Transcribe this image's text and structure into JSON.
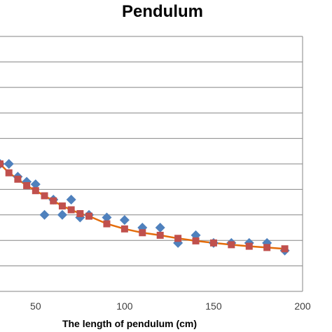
{
  "chart_data": {
    "type": "scatter",
    "title": "Pendulum",
    "xlabel": "The length of pendulum (cm)",
    "ylabel": "",
    "xlim": [
      30,
      200
    ],
    "ylim": [
      0,
      10
    ],
    "x_ticks": [
      50,
      100,
      150,
      200
    ],
    "grid": true,
    "legend": "none",
    "series": [
      {
        "marker": "diamond",
        "color": "#4F81BD",
        "points": [
          [
            30,
            5.0
          ],
          [
            35,
            5.0
          ],
          [
            40,
            4.5
          ],
          [
            45,
            4.3
          ],
          [
            50,
            4.2
          ],
          [
            55,
            3.0
          ],
          [
            60,
            3.6
          ],
          [
            65,
            3.0
          ],
          [
            70,
            3.6
          ],
          [
            75,
            2.9
          ],
          [
            80,
            3.0
          ],
          [
            90,
            2.9
          ],
          [
            100,
            2.8
          ],
          [
            110,
            2.5
          ],
          [
            120,
            2.5
          ],
          [
            130,
            1.9
          ],
          [
            140,
            2.2
          ],
          [
            150,
            1.9
          ],
          [
            160,
            1.9
          ],
          [
            170,
            1.9
          ],
          [
            180,
            1.9
          ],
          [
            190,
            1.6
          ]
        ]
      },
      {
        "marker": "square",
        "line": true,
        "color": "#C0504D",
        "line_color": "#E46C0A",
        "points": [
          [
            30,
            5.0
          ],
          [
            35,
            4.65
          ],
          [
            40,
            4.4
          ],
          [
            45,
            4.15
          ],
          [
            50,
            3.95
          ],
          [
            55,
            3.75
          ],
          [
            60,
            3.55
          ],
          [
            65,
            3.35
          ],
          [
            70,
            3.2
          ],
          [
            75,
            3.05
          ],
          [
            80,
            2.95
          ],
          [
            90,
            2.65
          ],
          [
            100,
            2.45
          ],
          [
            110,
            2.3
          ],
          [
            120,
            2.2
          ],
          [
            130,
            2.08
          ],
          [
            140,
            1.98
          ],
          [
            150,
            1.9
          ],
          [
            160,
            1.83
          ],
          [
            170,
            1.77
          ],
          [
            180,
            1.72
          ],
          [
            190,
            1.67
          ]
        ]
      }
    ]
  }
}
